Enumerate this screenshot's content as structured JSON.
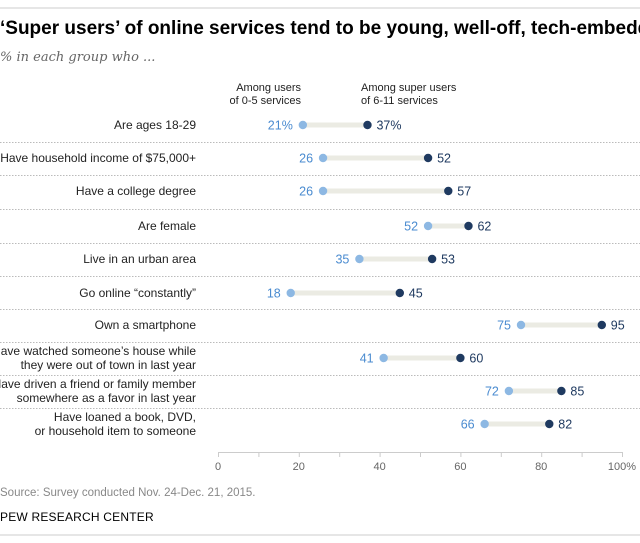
{
  "chart_data": {
    "type": "dot",
    "title": "‘Super users’ of online services tend to be young, well-off, tech-embedded",
    "subtitle": "% in each group who ...",
    "series": [
      {
        "name": "Among users of 0-5 services",
        "name_lines": [
          "Among users",
          "of 0-5 services"
        ],
        "color": "#8db8e3",
        "label_color": "#4a8bd0"
      },
      {
        "name": "Among super users of 6-11 services",
        "name_lines": [
          "Among super users",
          "of 6-11 services"
        ],
        "color": "#1f3a60",
        "label_color": "#1f3a60"
      }
    ],
    "rows": [
      {
        "label": [
          "Are ages 18-29"
        ],
        "values": [
          21,
          37
        ],
        "labels": [
          "21%",
          "37%"
        ]
      },
      {
        "label": [
          "Have household income of $75,000+"
        ],
        "values": [
          26,
          52
        ],
        "labels": [
          "26",
          "52"
        ]
      },
      {
        "label": [
          "Have a college degree"
        ],
        "values": [
          26,
          57
        ],
        "labels": [
          "26",
          "57"
        ]
      },
      {
        "label": [
          "Are female"
        ],
        "values": [
          52,
          62
        ],
        "labels": [
          "52",
          "62"
        ]
      },
      {
        "label": [
          "Live in an urban area"
        ],
        "values": [
          35,
          53
        ],
        "labels": [
          "35",
          "53"
        ]
      },
      {
        "label": [
          "Go online “constantly”"
        ],
        "values": [
          18,
          45
        ],
        "labels": [
          "18",
          "45"
        ]
      },
      {
        "label": [
          "Own a smartphone"
        ],
        "values": [
          75,
          95
        ],
        "labels": [
          "75",
          "95"
        ]
      },
      {
        "label": [
          "Have watched someone’s house while",
          "they were out of town in last year"
        ],
        "values": [
          41,
          60
        ],
        "labels": [
          "41",
          "60"
        ]
      },
      {
        "label": [
          "Have driven a friend or family member",
          "somewhere as a favor in last year"
        ],
        "values": [
          72,
          85
        ],
        "labels": [
          "72",
          "85"
        ]
      },
      {
        "label": [
          "Have loaned a book, DVD,",
          "or household item to someone"
        ],
        "values": [
          66,
          82
        ],
        "labels": [
          "66",
          "82"
        ]
      }
    ],
    "xlim": [
      0,
      100
    ],
    "xticks": [
      0,
      20,
      40,
      60,
      80,
      100
    ],
    "xtick_labels": [
      "0",
      "20",
      "40",
      "60",
      "80",
      "100%"
    ],
    "connector_color": "#ebebe3",
    "grid": false
  },
  "footer": {
    "source": "Source: Survey conducted Nov. 24-Dec. 21, 2015.",
    "brand": "PEW RESEARCH CENTER"
  }
}
